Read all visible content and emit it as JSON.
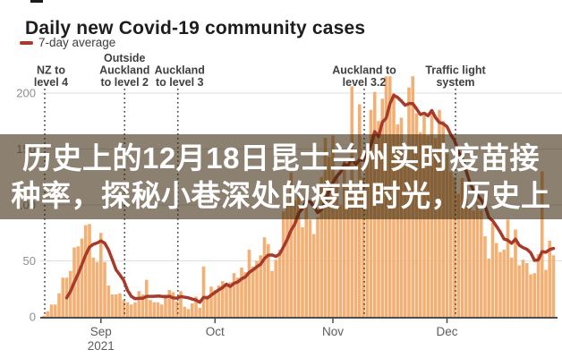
{
  "header": {
    "title": "Daily new Covid-19 community cases",
    "legend_label": "7-day average"
  },
  "overlay": {
    "line1": "历史上的12月18日昆士兰州实时疫苗接",
    "line2": "种率，探秘小巷深处的疫苗时光，历史上",
    "background": "rgba(56,36,8,0.58)",
    "text_color": "#ffffff"
  },
  "chart_data": {
    "type": "bar",
    "title": "Daily new Covid-19 community cases",
    "xlabel": "",
    "ylabel": "",
    "grid": true,
    "legend_position": "top-left",
    "legend": [
      {
        "name": "7-day average",
        "style": "line",
        "color": "#a83a2b"
      }
    ],
    "ylim": [
      0,
      230
    ],
    "y_ticks": [
      0,
      50,
      100,
      150,
      200
    ],
    "x_ticks": [
      {
        "day": 15,
        "label": "Sep",
        "sublabel": "2021"
      },
      {
        "day": 45,
        "label": "Oct",
        "sublabel": ""
      },
      {
        "day": 76,
        "label": "Nov",
        "sublabel": ""
      },
      {
        "day": 106,
        "label": "Dec",
        "sublabel": ""
      }
    ],
    "bar_series_name": "Daily new community cases",
    "daily_values": [
      1,
      5,
      11,
      11,
      21,
      35,
      35,
      41,
      62,
      63,
      70,
      82,
      83,
      53,
      49,
      75,
      49,
      28,
      20,
      20,
      21,
      15,
      13,
      11,
      13,
      23,
      20,
      33,
      15,
      13,
      13,
      11,
      20,
      24,
      22,
      14,
      23,
      9,
      7,
      12,
      18,
      8,
      45,
      19,
      27,
      24,
      28,
      32,
      29,
      31,
      39,
      35,
      44,
      40,
      60,
      45,
      50,
      55,
      71,
      65,
      41,
      51,
      60,
      94,
      102,
      129,
      104,
      109,
      80,
      109,
      87,
      74,
      89,
      125,
      160,
      143,
      162,
      126,
      100,
      139,
      116,
      206,
      105,
      190,
      125,
      147,
      185,
      201,
      175,
      195,
      215,
      215,
      200,
      172,
      178,
      149,
      205,
      215,
      182,
      165,
      180,
      162,
      182,
      160,
      185,
      175,
      146,
      130,
      125,
      110,
      124,
      105,
      100,
      95,
      103,
      95,
      72,
      52,
      84,
      66,
      58,
      60,
      87,
      53,
      78,
      46,
      51,
      48,
      38,
      39,
      56,
      130,
      42,
      68,
      55
    ],
    "line_series": {
      "name": "7-day average",
      "derived_from": "daily_values",
      "method": "trailing 7-day rolling mean"
    },
    "annotations": [
      {
        "day": 0,
        "lines": [
          "NZ to",
          "level 4"
        ],
        "label_dx": 7
      },
      {
        "day": 21,
        "lines": [
          "Outside",
          "Auckland",
          "to level 2"
        ],
        "label_dx": 0
      },
      {
        "day": 35,
        "lines": [
          "Auckland",
          "to level 3"
        ],
        "label_dx": 2
      },
      {
        "day": 84,
        "lines": [
          "Auckland to",
          "level 3.2"
        ],
        "label_dx": 0
      },
      {
        "day": 108,
        "lines": [
          "Traffic light",
          "system"
        ],
        "label_dx": 0
      }
    ],
    "colors": {
      "bar": "#f2b074",
      "line": "#a83a2b",
      "grid": "#dedede",
      "axis": "#4d4d4d",
      "y_tick_label": "#8e8e8e",
      "month_label": "#5c5c5c",
      "annotation_text": "#3f3f3f",
      "annotation_dots": "#4a4a4a"
    }
  }
}
